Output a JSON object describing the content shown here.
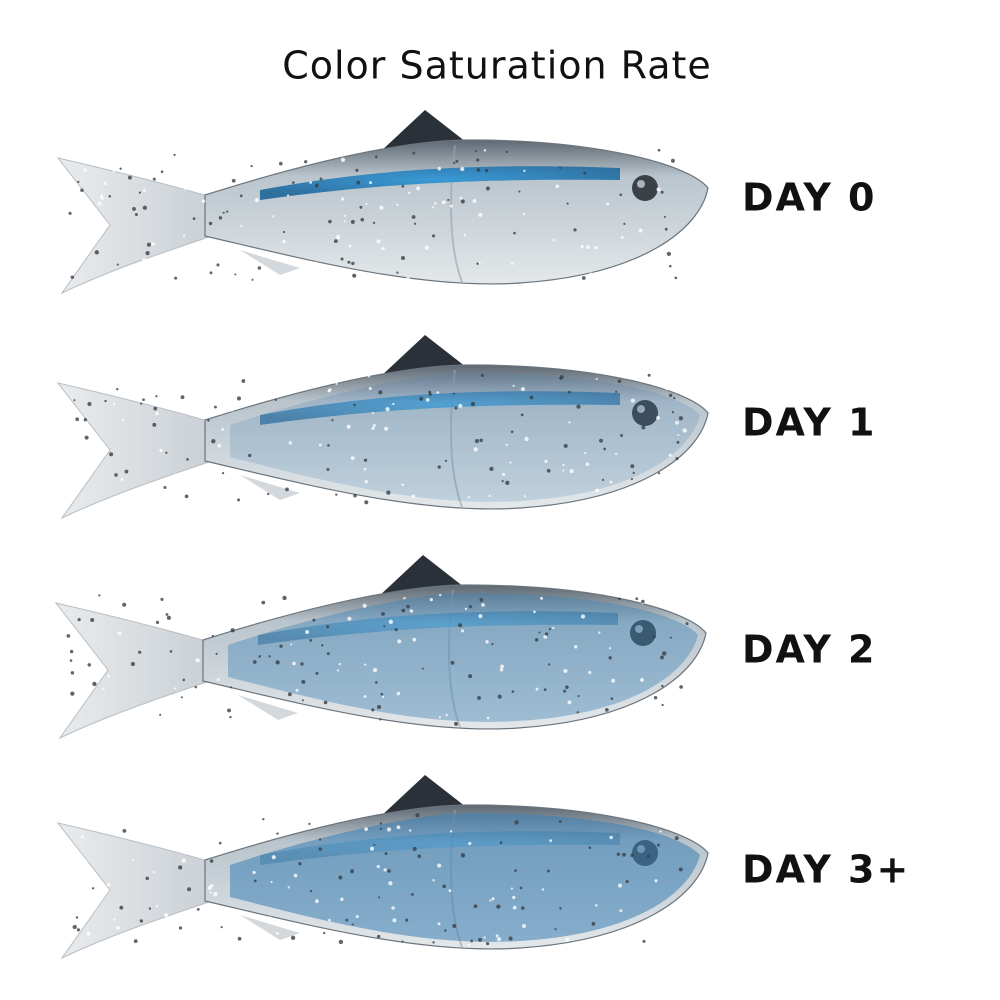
{
  "title": "Color Saturation Rate",
  "items": [
    {
      "label": "DAY 0"
    },
    {
      "label": "DAY 1"
    },
    {
      "label": "DAY 2"
    },
    {
      "label": "DAY 3+"
    }
  ]
}
